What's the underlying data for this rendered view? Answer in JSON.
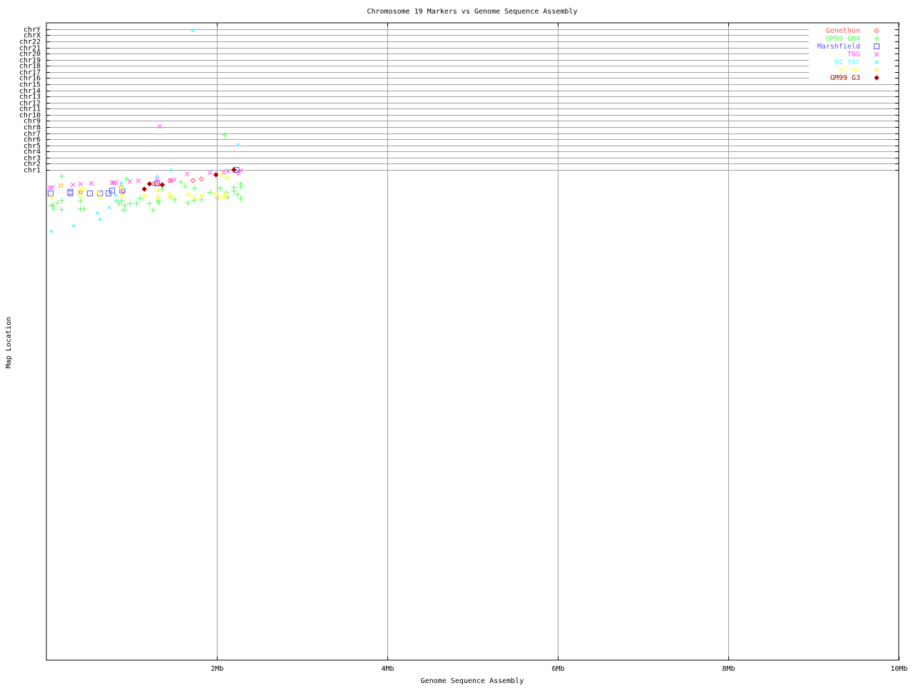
{
  "chart_data": {
    "type": "scatter",
    "title": "Chromosome 19 Markers vs Genome Sequence Assembly",
    "xlabel": "Genome Sequence Assembly",
    "ylabel": "Map Location",
    "xlim": [
      0,
      10
    ],
    "x_unit": "Mb",
    "x_ticks": [
      {
        "value": 2,
        "label": "2Mb"
      },
      {
        "value": 4,
        "label": "4Mb"
      },
      {
        "value": 6,
        "label": "6Mb"
      },
      {
        "value": 8,
        "label": "8Mb"
      },
      {
        "value": 10,
        "label": "10Mb"
      }
    ],
    "y_categories": [
      "chr1",
      "chr2",
      "chr3",
      "chr4",
      "chr5",
      "chr6",
      "chr7",
      "chr8",
      "chr9",
      "chr10",
      "chr11",
      "chr12",
      "chr13",
      "chr14",
      "chr15",
      "chr16",
      "chr17",
      "chr18",
      "chr19",
      "chr20",
      "chr21",
      "chr22",
      "chrX",
      "chrY"
    ],
    "grid": true,
    "legend_position": "top-right",
    "series": [
      {
        "name": "Genethon",
        "color": "#ff5555",
        "marker": "diamond",
        "points": [
          [
            0.4,
            -2.6
          ],
          [
            0.88,
            -1.8
          ],
          [
            0.9,
            -2.4
          ],
          [
            1.26,
            -1.3
          ],
          [
            1.3,
            -1.3
          ],
          [
            1.45,
            -0.75
          ],
          [
            1.72,
            -0.75
          ],
          [
            1.82,
            -0.5
          ],
          [
            2.25,
            0.5
          ]
        ]
      },
      {
        "name": "GM99 GB4",
        "color": "#55ff55",
        "marker": "plus",
        "points": [
          [
            0.18,
            -0.05
          ],
          [
            0.06,
            -4.8
          ],
          [
            0.09,
            -5.4
          ],
          [
            0.08,
            -4.8
          ],
          [
            0.18,
            -5.5
          ],
          [
            0.18,
            -4.0
          ],
          [
            0.13,
            -4.4
          ],
          [
            0.39,
            -3.0
          ],
          [
            0.4,
            -5.4
          ],
          [
            0.44,
            -5.4
          ],
          [
            0.4,
            -4.1
          ],
          [
            0.85,
            -4.5
          ],
          [
            0.88,
            -4.0
          ],
          [
            0.91,
            -5.6
          ],
          [
            0.92,
            -4.8
          ],
          [
            0.98,
            -4.5
          ],
          [
            1.06,
            -4.5
          ],
          [
            0.94,
            -0.5
          ],
          [
            1.1,
            -3.7
          ],
          [
            1.21,
            -4.5
          ],
          [
            1.25,
            -5.6
          ],
          [
            1.32,
            -4.4
          ],
          [
            1.31,
            -4.1
          ],
          [
            1.36,
            -2.15
          ],
          [
            1.46,
            -3.55
          ],
          [
            1.51,
            -3.9
          ],
          [
            1.58,
            -1.0
          ],
          [
            1.63,
            -1.7
          ],
          [
            1.66,
            -4.4
          ],
          [
            1.73,
            -4.0
          ],
          [
            1.74,
            -2.0
          ],
          [
            1.82,
            -3.9
          ],
          [
            1.92,
            -2.7
          ],
          [
            2.01,
            -3.55
          ],
          [
            2.04,
            -2.0
          ],
          [
            2.11,
            -2.7
          ],
          [
            2.13,
            -3.55
          ],
          [
            2.2,
            -1.9
          ],
          [
            2.2,
            -2.5
          ],
          [
            2.28,
            -1.3
          ],
          [
            2.28,
            -1.8
          ],
          [
            2.28,
            -3.7
          ],
          [
            2.24,
            -3.0
          ],
          [
            2.09,
            6.7
          ]
        ]
      },
      {
        "name": "Marshfield",
        "color": "#5555ff",
        "marker": "square",
        "points": [
          [
            0.05,
            -2.85
          ],
          [
            0.28,
            -2.85
          ],
          [
            0.28,
            -2.6
          ],
          [
            0.51,
            -2.85
          ],
          [
            0.63,
            -2.85
          ],
          [
            0.73,
            -2.85
          ],
          [
            0.77,
            -2.4
          ],
          [
            0.89,
            -2.4
          ],
          [
            1.3,
            -1.2
          ],
          [
            2.23,
            1.0
          ]
        ]
      },
      {
        "name": "TNG",
        "color": "#ff55ff",
        "marker": "x",
        "points": [
          [
            0.07,
            -1.9
          ],
          [
            0.17,
            -1.6
          ],
          [
            0.31,
            -1.45
          ],
          [
            0.4,
            -1.3
          ],
          [
            0.53,
            -1.2
          ],
          [
            0.77,
            -1.1
          ],
          [
            0.82,
            -1.1
          ],
          [
            0.98,
            -0.9
          ],
          [
            1.08,
            -0.75
          ],
          [
            1.3,
            -0.6
          ],
          [
            1.5,
            -0.6
          ],
          [
            1.65,
            0.3
          ],
          [
            1.92,
            0.5
          ],
          [
            2.08,
            0.6
          ],
          [
            2.13,
            0.8
          ],
          [
            2.28,
            0.9
          ],
          [
            1.46,
            -0.75
          ],
          [
            0.79,
            -1.1
          ],
          [
            0.04,
            -1.9
          ],
          [
            1.33,
            8.1
          ]
        ]
      },
      {
        "name": "WI YAC",
        "color": "#55ffff",
        "marker": "triangle",
        "points": [
          [
            0.06,
            -9.0
          ],
          [
            0.32,
            -8.1
          ],
          [
            0.6,
            -6.0
          ],
          [
            0.63,
            -7.05
          ],
          [
            0.74,
            -5.1
          ],
          [
            0.81,
            -3.1
          ],
          [
            0.82,
            -4.0
          ],
          [
            0.88,
            -1.1
          ],
          [
            1.3,
            -0.05
          ],
          [
            1.46,
            1.0
          ],
          [
            0.9,
            -1.9
          ],
          [
            1.72,
            23.8
          ],
          [
            2.25,
            5.1
          ]
        ]
      },
      {
        "name": "WI RH",
        "color": "#ffff55",
        "marker": "asterisk",
        "points": [
          [
            0.06,
            -3.55
          ],
          [
            0.18,
            -1.6
          ],
          [
            0.4,
            -2.15
          ],
          [
            0.44,
            -2.15
          ],
          [
            0.4,
            -3.2
          ],
          [
            0.6,
            -2.7
          ],
          [
            0.63,
            -3.55
          ],
          [
            0.89,
            -3.2
          ],
          [
            0.88,
            -1.9
          ],
          [
            1.15,
            -3.3
          ],
          [
            1.31,
            -2.4
          ],
          [
            1.31,
            -3.55
          ],
          [
            1.45,
            -3.0
          ],
          [
            1.46,
            -3.4
          ],
          [
            1.67,
            -3.0
          ],
          [
            1.74,
            -3.55
          ],
          [
            1.82,
            -3.2
          ],
          [
            1.99,
            -3.0
          ],
          [
            2.03,
            -3.55
          ],
          [
            2.07,
            0.1
          ],
          [
            2.1,
            -3.0
          ],
          [
            2.12,
            -0.4
          ],
          [
            2.09,
            -3.55
          ]
        ]
      },
      {
        "name": "GM99 G3",
        "color": "#aa0000",
        "marker": "diamond-filled",
        "points": [
          [
            1.15,
            -2.15
          ],
          [
            1.21,
            -1.3
          ],
          [
            1.36,
            -1.45
          ],
          [
            1.99,
            0.2
          ],
          [
            2.2,
            1.0
          ]
        ]
      }
    ]
  }
}
